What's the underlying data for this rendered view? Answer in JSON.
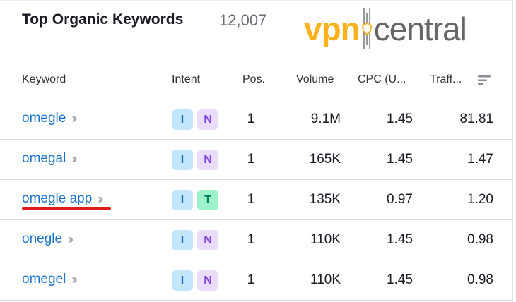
{
  "header": {
    "title": "Top Organic Keywords",
    "count": "12,007"
  },
  "watermark": {
    "part1": "vpn",
    "part2": "central"
  },
  "columns": [
    "Keyword",
    "Intent",
    "Pos.",
    "Volume",
    "CPC (U...",
    "Traff..."
  ],
  "sort_icon": "sort-icon",
  "colors": {
    "link": "#1a73c8",
    "I_bg": "#c4e5fe",
    "I_fg": "#006dca",
    "N_bg": "#eadcff",
    "N_fg": "#7f47dd",
    "T_bg": "#9ef2c9",
    "T_fg": "#007c65",
    "highlight": "#e01b1b"
  },
  "rows": [
    {
      "keyword": "omegle",
      "intents": [
        "I",
        "N"
      ],
      "pos": "1",
      "volume": "9.1M",
      "cpc": "1.45",
      "traffic": "81.81"
    },
    {
      "keyword": "omegal",
      "intents": [
        "I",
        "N"
      ],
      "pos": "1",
      "volume": "165K",
      "cpc": "1.45",
      "traffic": "1.47"
    },
    {
      "keyword": "omegle app",
      "intents": [
        "I",
        "T"
      ],
      "pos": "1",
      "volume": "135K",
      "cpc": "0.97",
      "traffic": "1.20"
    },
    {
      "keyword": "onegle",
      "intents": [
        "I",
        "N"
      ],
      "pos": "1",
      "volume": "110K",
      "cpc": "1.45",
      "traffic": "0.98"
    },
    {
      "keyword": "omegel",
      "intents": [
        "I",
        "N"
      ],
      "pos": "1",
      "volume": "110K",
      "cpc": "1.45",
      "traffic": "0.98"
    }
  ]
}
